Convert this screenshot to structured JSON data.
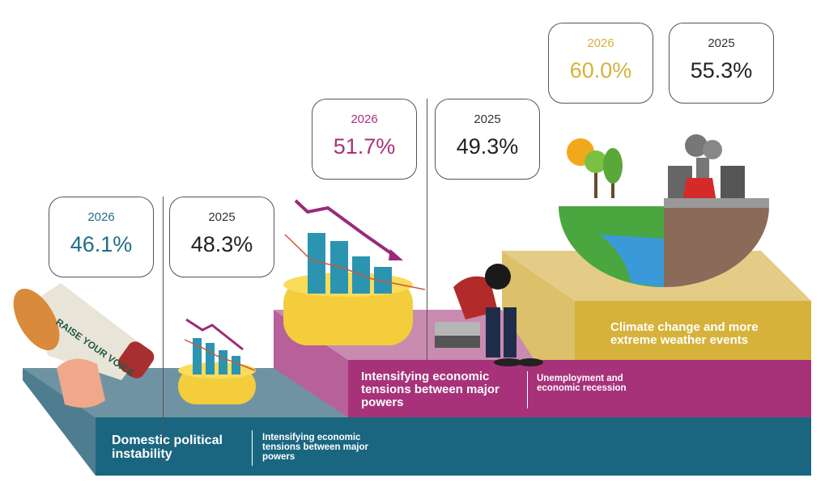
{
  "colors": {
    "teal": "#1e6e88",
    "magenta": "#a8327a",
    "gold": "#d6b23a"
  },
  "tiers": [
    {
      "rank_label": "Domestic political instability",
      "secondary_label": "Intensifying economic tensions between major powers",
      "year_current": "2026",
      "value_current": "46.1%",
      "year_previous": "2025",
      "value_previous": "48.3%",
      "illustration": "megaphone-raise-your-voice",
      "megaphone_text": "RAISE YOUR VOICE"
    },
    {
      "rank_label": "Intensifying economic tensions between major powers",
      "secondary_label": "Unemployment and economic recession",
      "year_current": "2026",
      "value_current": "51.7%",
      "year_previous": "2025",
      "value_previous": "49.3%",
      "illustration": "falling-chart-on-coins"
    },
    {
      "rank_label": "Climate change and more extreme weather events",
      "year_current": "2026",
      "value_current": "60.0%",
      "year_previous": "2025",
      "value_previous": "55.3%",
      "illustration": "half-green-half-polluted-globe"
    }
  ]
}
